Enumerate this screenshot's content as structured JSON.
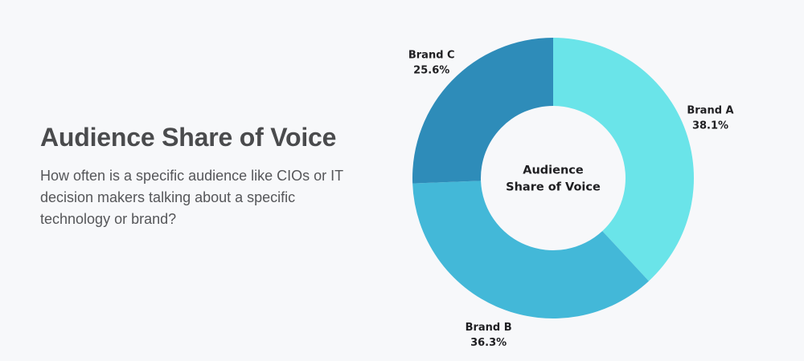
{
  "page": {
    "headline": "Audience Share of Voice",
    "description": "How often is a specific audience like CIOs or IT decision makers talking about a specific technology or brand?"
  },
  "chart_data": {
    "type": "pie",
    "variant": "donut",
    "title": "Audience Share of Voice",
    "center_label_lines": [
      "Audience",
      "Share of Voice"
    ],
    "start_angle_deg": 0,
    "direction": "clockwise",
    "slices": [
      {
        "name": "Brand A",
        "value": 38.1,
        "label": "38.1%",
        "color": "#6ae4e9"
      },
      {
        "name": "Brand B",
        "value": 36.3,
        "label": "36.3%",
        "color": "#43b8d8"
      },
      {
        "name": "Brand C",
        "value": 25.6,
        "label": "25.6%",
        "color": "#2e8cb9"
      }
    ]
  }
}
